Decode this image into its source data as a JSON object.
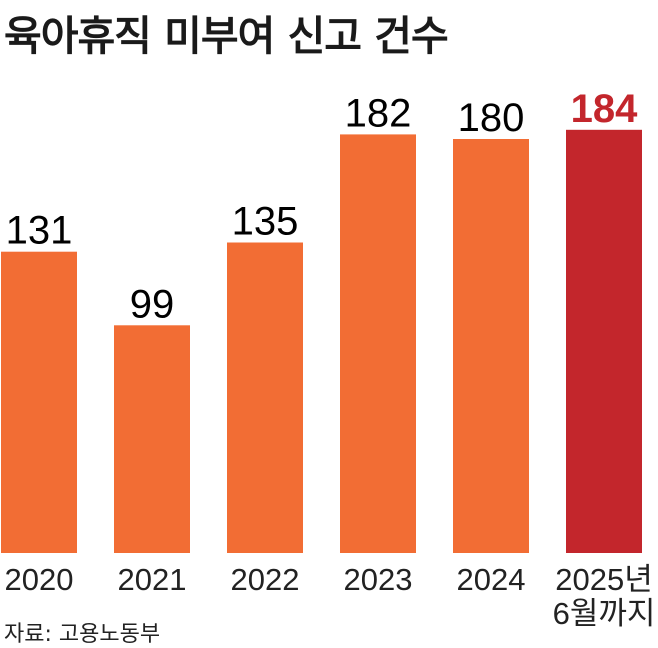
{
  "title": "육아휴직 미부여 신고 건수",
  "source": "자료: 고용노동부",
  "colors": {
    "bar": "#f26d34",
    "highlight_bar": "#c3262c",
    "highlight_label": "#c3262c"
  },
  "chart_data": {
    "type": "bar",
    "title": "육아휴직 미부여 신고 건수",
    "categories": [
      "2020",
      "2021",
      "2022",
      "2023",
      "2024",
      "2025년 6월까지"
    ],
    "category_lines": [
      [
        "2020"
      ],
      [
        "2021"
      ],
      [
        "2022"
      ],
      [
        "2023"
      ],
      [
        "2024"
      ],
      [
        "2025년",
        "6월까지"
      ]
    ],
    "values": [
      131,
      99,
      135,
      182,
      180,
      184
    ],
    "highlight_index": 5,
    "ylim": [
      0,
      190
    ],
    "grid": false,
    "legend": "none"
  }
}
